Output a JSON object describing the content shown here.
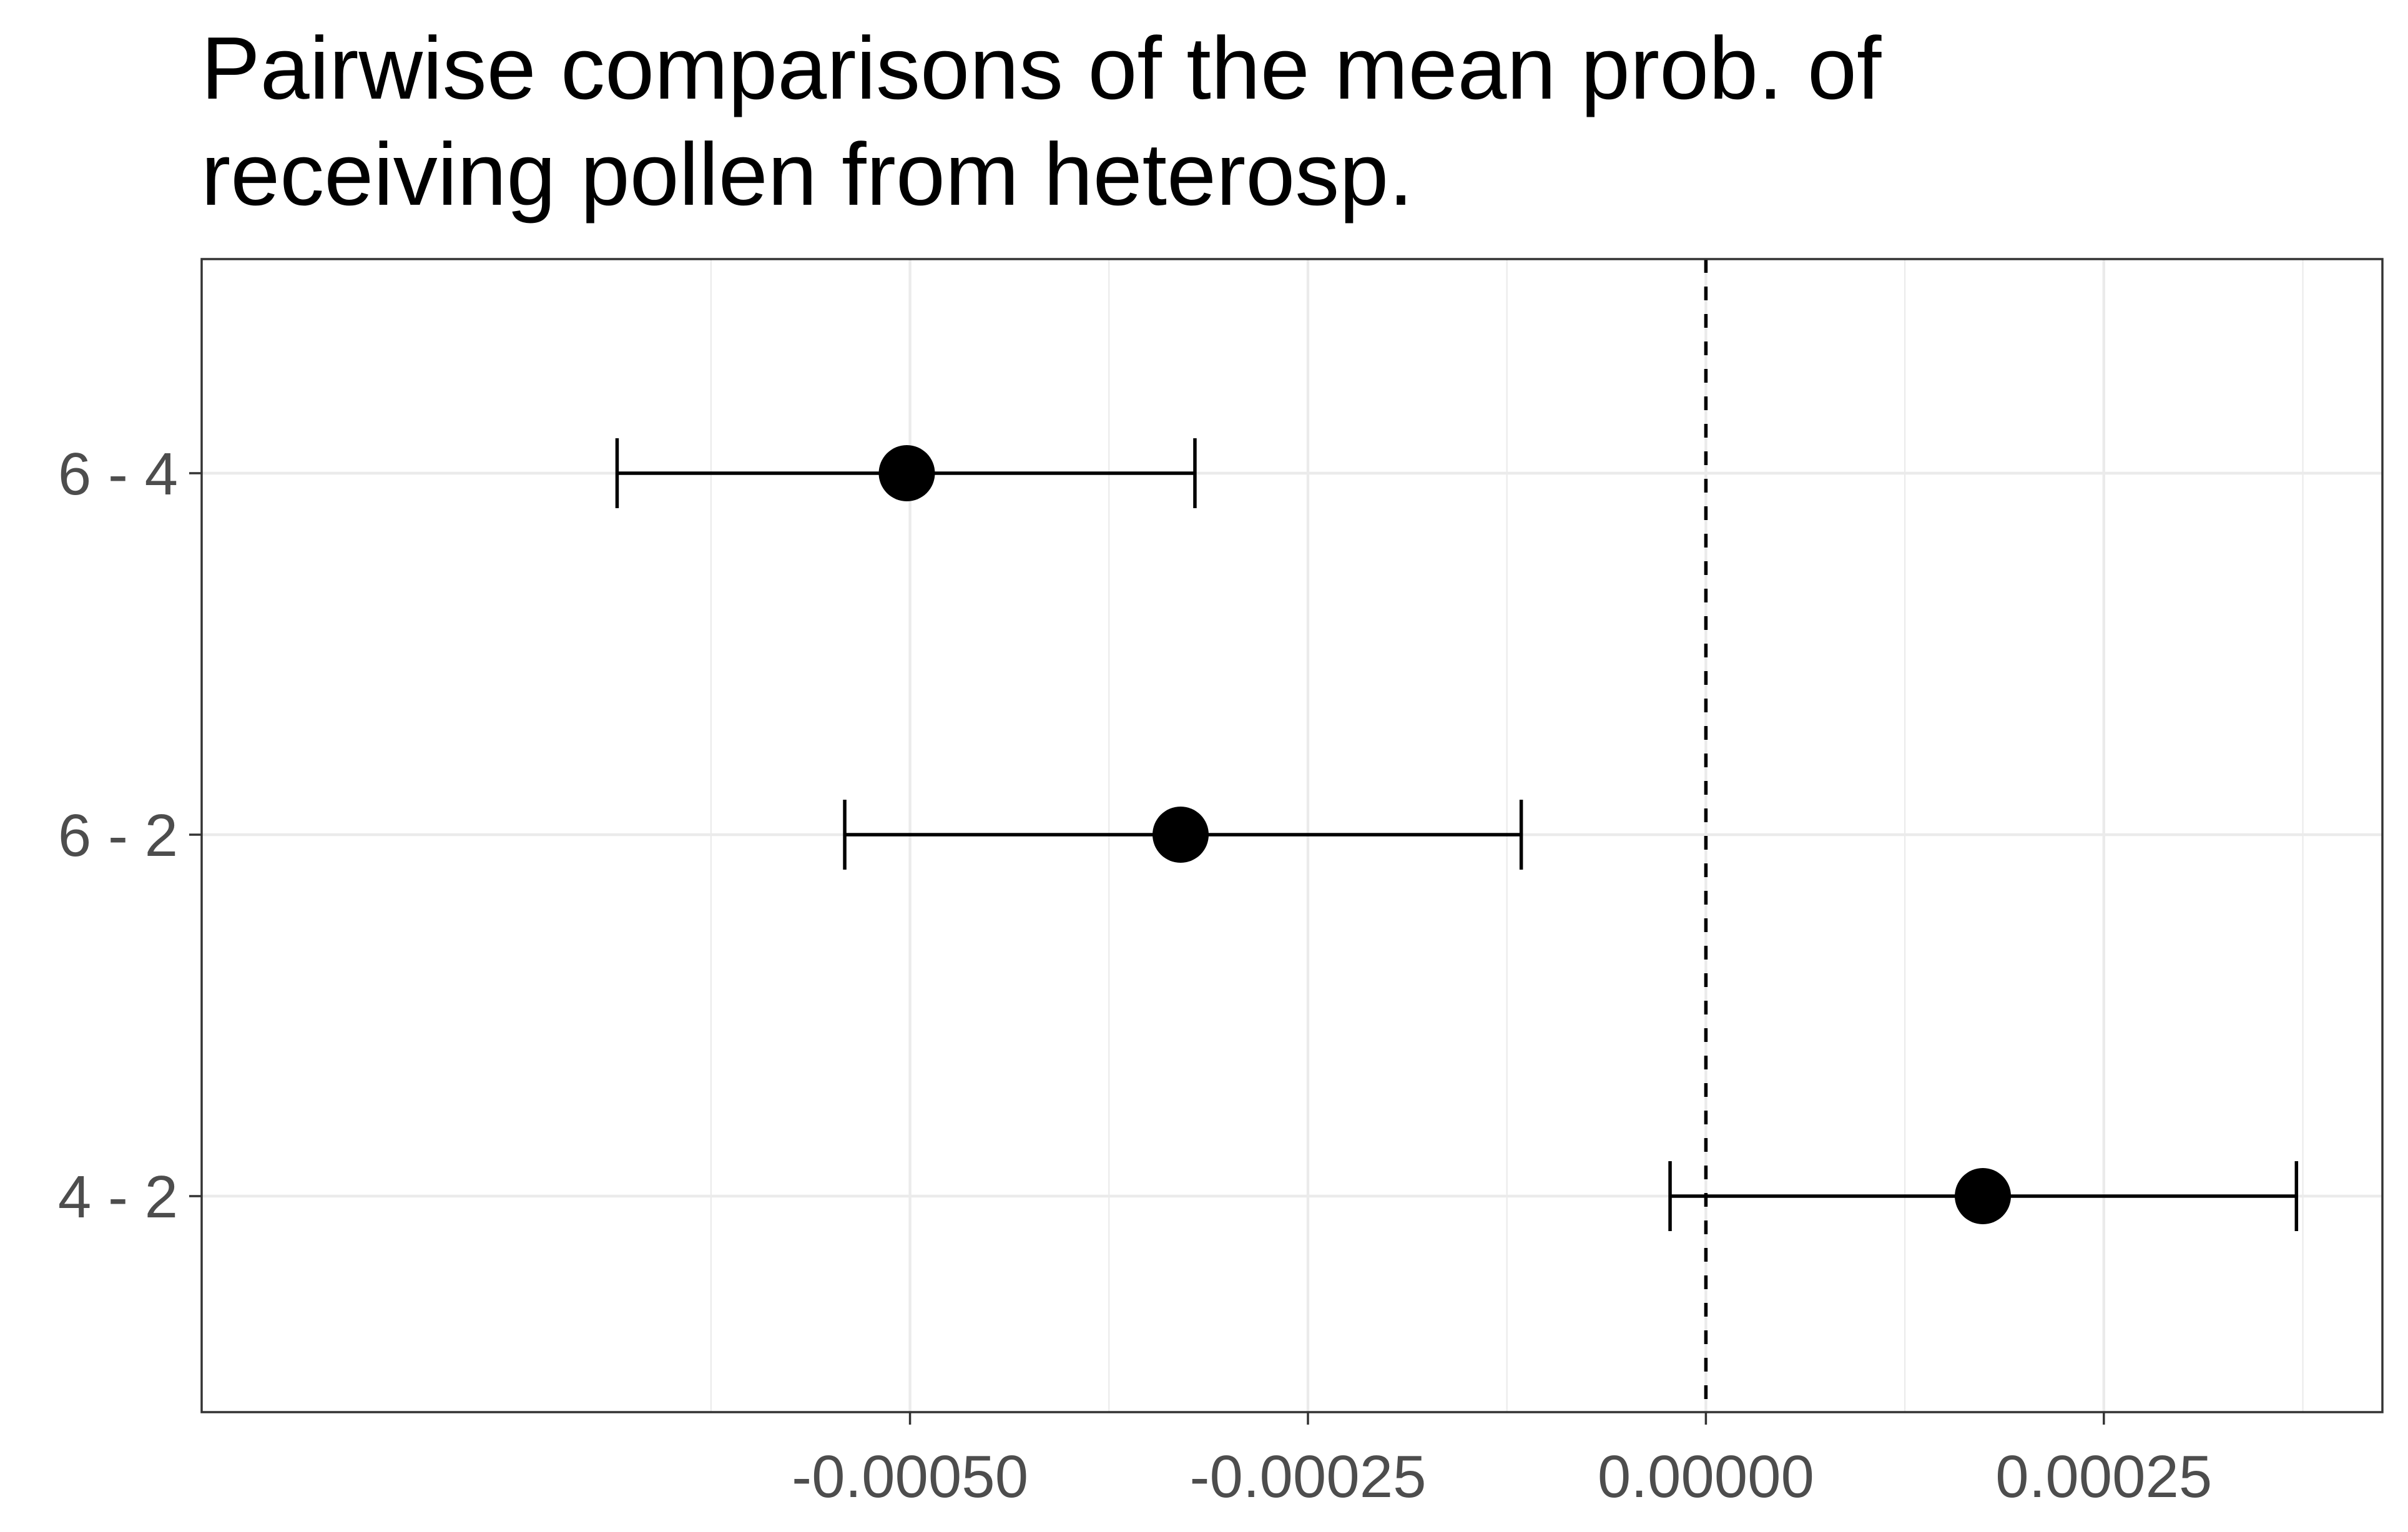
{
  "chart_data": {
    "type": "scatter",
    "title_lines": [
      "Pairwise comparisons of the mean prob. of",
      "receiving pollen from heterosp."
    ],
    "xlabel": "",
    "ylabel": "",
    "orientation": "horizontal",
    "xlim": [
      -0.000945,
      0.000425
    ],
    "x_ticks": [
      -0.0005,
      -0.00025,
      0.0,
      0.00025
    ],
    "x_tick_labels": [
      "-0.00050",
      "-0.00025",
      "0.00000",
      "0.00025"
    ],
    "categories": [
      "6 - 4",
      "6 - 2",
      "4 - 2"
    ],
    "points": [
      {
        "label": "6 - 4",
        "estimate": -0.000502,
        "lower": -0.000684,
        "upper": -0.000321
      },
      {
        "label": "6 - 2",
        "estimate": -0.00033,
        "lower": -0.000541,
        "upper": -0.000116
      },
      {
        "label": "4 - 2",
        "estimate": 0.000174,
        "lower": -2.25e-05,
        "upper": 0.000371
      }
    ],
    "reference_line": {
      "x": 0.0,
      "style": "dashed"
    },
    "grid": true,
    "legend": "none"
  },
  "colors": {
    "panel_border": "#333333",
    "grid_line": "#ebebeb",
    "point": "#000000",
    "errorbar": "#000000",
    "reference_line": "#000000",
    "tick_label": "#4d4d4d",
    "title": "#000000"
  }
}
